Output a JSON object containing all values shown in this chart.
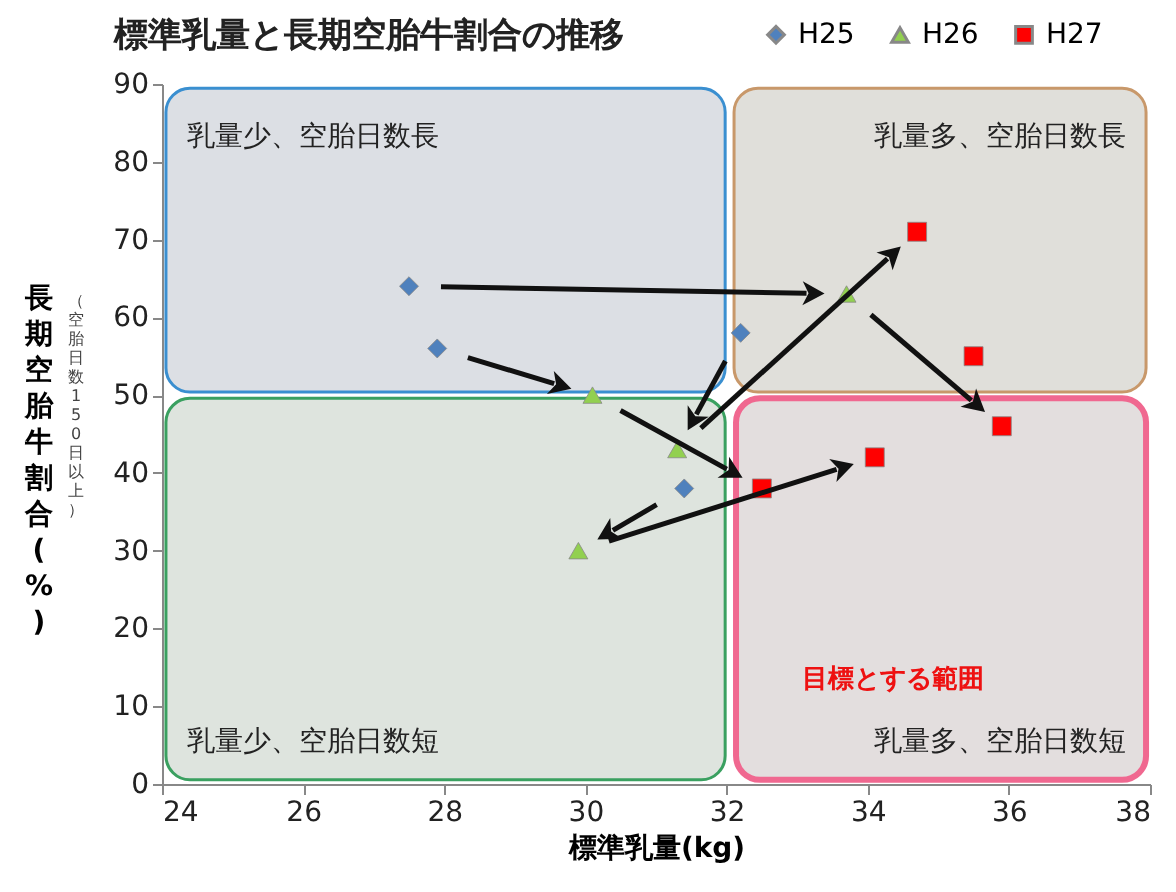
{
  "chart_data": {
    "type": "scatter",
    "title": "標準乳量と長期空胎牛割合の推移",
    "xlabel": "標準乳量(kg)",
    "ylabel": "長期空胎牛割合(%)",
    "series": [
      {
        "name": "H25",
        "color": "#4f81bd",
        "marker": "diamond",
        "x": [
          27.5,
          27.9,
          32.2,
          31.4
        ],
        "values": [
          64,
          56,
          58,
          38
        ]
      },
      {
        "name": "H26",
        "color": "#92d050",
        "marker": "triangle",
        "x": [
          30.1,
          31.3,
          29.9,
          33.7
        ],
        "values": [
          50,
          43,
          30,
          63
        ]
      },
      {
        "name": "H27",
        "color": "#ff0000",
        "marker": "square",
        "x": [
          34.7,
          35.5,
          35.9,
          34.1,
          32.5
        ],
        "values": [
          71,
          55,
          46,
          42,
          38
        ]
      }
    ],
    "xlim": [
      24,
      38
    ],
    "xticks": [
      24,
      26,
      28,
      30,
      32,
      34,
      36,
      38
    ],
    "ylim": [
      0,
      90
    ],
    "yticks": [
      0,
      10,
      20,
      30,
      40,
      50,
      60,
      70,
      80,
      90
    ],
    "legend": "top right",
    "annotations": [
      "乳量少、空胎日数長",
      "乳量多、空胎日数長",
      "乳量少、空胎日数短",
      "乳量多、空胎日数短",
      "目標とする範囲",
      "（空胎日数150日以上）"
    ]
  }
}
